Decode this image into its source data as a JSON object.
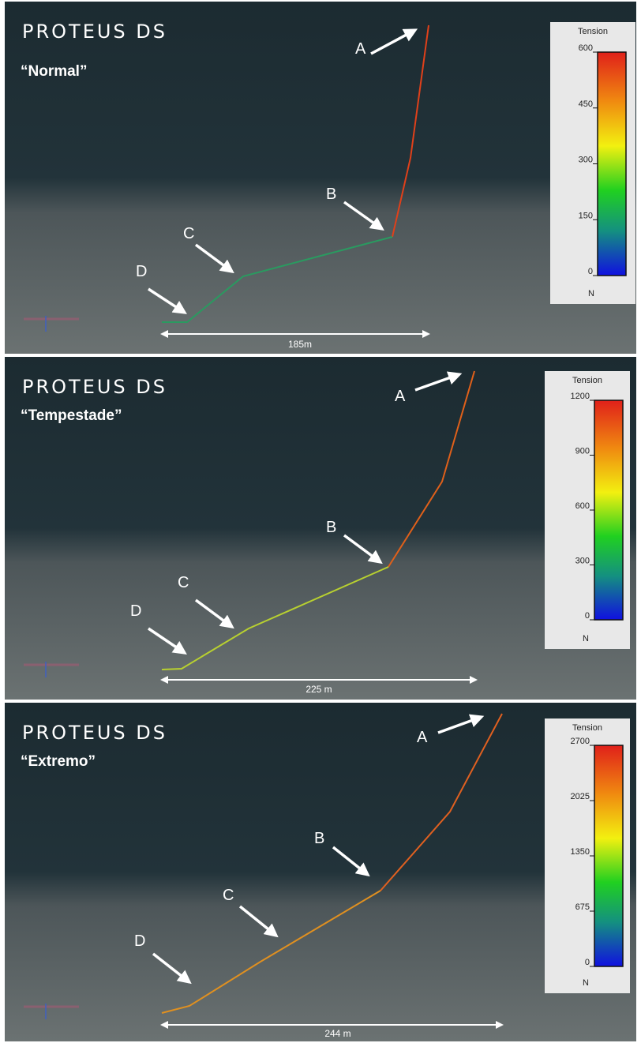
{
  "panels": [
    {
      "logo": "PROTEUS DS",
      "scenario": "“Normal”",
      "labels": [
        "A",
        "B",
        "C",
        "D"
      ],
      "distance": "185m",
      "colorbar": {
        "title": "Tension",
        "ticks": [
          0,
          150,
          300,
          450,
          600
        ],
        "unit": "N"
      }
    },
    {
      "logo": "PROTEUS DS",
      "scenario": "“Tempestade”",
      "labels": [
        "A",
        "B",
        "C",
        "D"
      ],
      "distance": "225 m",
      "colorbar": {
        "title": "Tension",
        "ticks": [
          0,
          300,
          600,
          900,
          1200
        ],
        "unit": "N"
      }
    },
    {
      "logo": "PROTEUS DS",
      "scenario": "“Extremo”",
      "labels": [
        "A",
        "B",
        "C",
        "D"
      ],
      "distance": "244 m",
      "colorbar": {
        "title": "Tension",
        "ticks": [
          0,
          675,
          1350,
          2025,
          2700
        ],
        "unit": "N"
      }
    }
  ]
}
